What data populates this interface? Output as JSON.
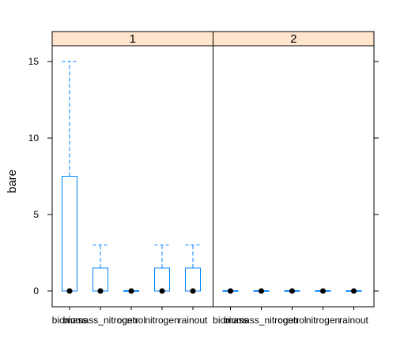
{
  "chart_data": {
    "type": "boxplot",
    "ylabel": "bare",
    "xlabel": "",
    "ylim": [
      -1,
      16
    ],
    "yticks": [
      0,
      5,
      10,
      15
    ],
    "categories": [
      "biomass",
      "biomass_nitrogen",
      "control",
      "nitrogen",
      "rainout"
    ],
    "panels": [
      {
        "label": "1",
        "boxes": [
          {
            "category": "biomass",
            "min": 0,
            "q1": 0,
            "median": 0,
            "q3": 7.5,
            "max": 15
          },
          {
            "category": "biomass_nitrogen",
            "min": 0,
            "q1": 0,
            "median": 0,
            "q3": 1.5,
            "max": 3
          },
          {
            "category": "control",
            "min": 0,
            "q1": 0,
            "median": 0,
            "q3": 0,
            "max": 0
          },
          {
            "category": "nitrogen",
            "min": 0,
            "q1": 0,
            "median": 0,
            "q3": 1.5,
            "max": 3
          },
          {
            "category": "rainout",
            "min": 0,
            "q1": 0,
            "median": 0,
            "q3": 1.5,
            "max": 3
          }
        ]
      },
      {
        "label": "2",
        "boxes": [
          {
            "category": "biomass",
            "min": 0,
            "q1": 0,
            "median": 0,
            "q3": 0,
            "max": 0
          },
          {
            "category": "biomass_nitrogen",
            "min": 0,
            "q1": 0,
            "median": 0,
            "q3": 0,
            "max": 0
          },
          {
            "category": "control",
            "min": 0,
            "q1": 0,
            "median": 0,
            "q3": 0,
            "max": 0
          },
          {
            "category": "nitrogen",
            "min": 0,
            "q1": 0,
            "median": 0,
            "q3": 0,
            "max": 0
          },
          {
            "category": "rainout",
            "min": 0,
            "q1": 0,
            "median": 0,
            "q3": 0,
            "max": 0
          }
        ]
      }
    ],
    "colors": {
      "box": "#0080ff",
      "strip_fill": "#ffe5cc",
      "median_dot": "#000000",
      "frame": "#000000"
    },
    "grid": false
  }
}
